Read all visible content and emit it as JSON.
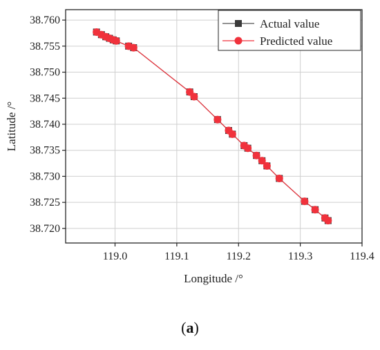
{
  "caption": {
    "open": "(",
    "letter": "a",
    "close": ")"
  },
  "chart_data": {
    "type": "line",
    "xlabel": "Longitude /°",
    "ylabel": "Latitude /°",
    "xlim": [
      118.92,
      119.4
    ],
    "ylim": [
      38.7172,
      38.762
    ],
    "xticks": [
      119.0,
      119.1,
      119.2,
      119.3,
      119.4
    ],
    "xtick_labels": [
      "119.0",
      "119.1",
      "119.2",
      "119.3",
      "119.4"
    ],
    "yticks": [
      38.72,
      38.725,
      38.73,
      38.735,
      38.74,
      38.745,
      38.75,
      38.755,
      38.76
    ],
    "ytick_labels": [
      "38.720",
      "38.725",
      "38.730",
      "38.735",
      "38.740",
      "38.745",
      "38.750",
      "38.755",
      "38.760"
    ],
    "grid": true,
    "legend_position": "top-right",
    "series": [
      {
        "name": "Actual value",
        "color": "#3a3a3a",
        "marker": "square",
        "x": [
          118.97,
          118.978,
          118.985,
          118.991,
          118.997,
          119.002,
          119.022,
          119.03,
          119.121,
          119.128,
          119.166,
          119.184,
          119.19,
          119.209,
          119.215,
          119.229,
          119.238,
          119.246,
          119.266,
          119.307,
          119.324,
          119.34,
          119.345
        ],
        "y": [
          38.7577,
          38.7572,
          38.7568,
          38.7565,
          38.7562,
          38.756,
          38.755,
          38.7547,
          38.7462,
          38.7453,
          38.7409,
          38.7388,
          38.7381,
          38.7359,
          38.7354,
          38.734,
          38.733,
          38.732,
          38.7296,
          38.7252,
          38.7236,
          38.722,
          38.7215
        ]
      },
      {
        "name": "Predicted value",
        "color": "#f0323c",
        "marker": "circle",
        "x": [
          118.97,
          118.978,
          118.985,
          118.991,
          118.997,
          119.002,
          119.022,
          119.03,
          119.121,
          119.128,
          119.166,
          119.184,
          119.19,
          119.209,
          119.215,
          119.229,
          119.238,
          119.246,
          119.266,
          119.307,
          119.324,
          119.34,
          119.345
        ],
        "y": [
          38.7577,
          38.7572,
          38.7568,
          38.7565,
          38.7562,
          38.756,
          38.755,
          38.7547,
          38.7462,
          38.7453,
          38.7409,
          38.7388,
          38.7381,
          38.7359,
          38.7354,
          38.734,
          38.733,
          38.732,
          38.7296,
          38.7252,
          38.7236,
          38.722,
          38.7215
        ]
      }
    ]
  }
}
